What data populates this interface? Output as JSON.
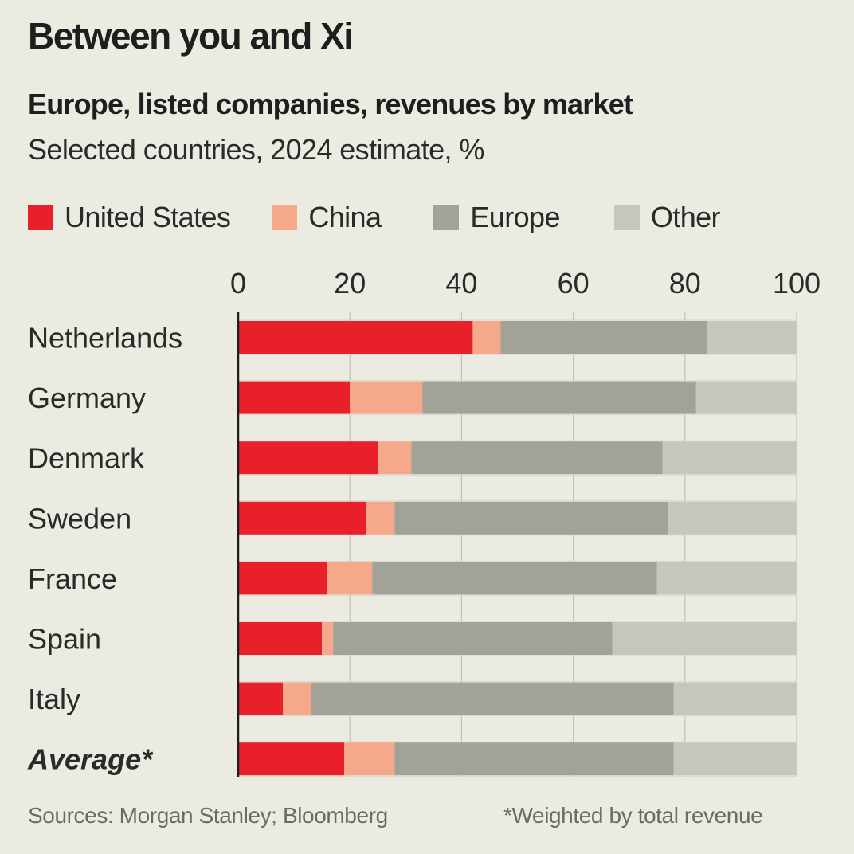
{
  "chart_data": {
    "type": "bar",
    "orientation": "horizontal",
    "stacked": true,
    "title": "Between you and Xi",
    "subtitle": "Europe, listed companies, revenues by market",
    "subsubtitle": "Selected countries, 2024 estimate, %",
    "xlabel": "",
    "ylabel": "",
    "xlim": [
      0,
      100
    ],
    "xticks": [
      "0",
      "20",
      "40",
      "60",
      "80",
      "100"
    ],
    "grid": true,
    "legend_position": "top",
    "categories": [
      "Netherlands",
      "Germany",
      "Denmark",
      "Sweden",
      "France",
      "Spain",
      "Italy",
      "Average*"
    ],
    "series": [
      {
        "name": "United States",
        "color": "#e8202a",
        "values": [
          42,
          20,
          25,
          23,
          16,
          15,
          8,
          19
        ]
      },
      {
        "name": "China",
        "color": "#f6a88a",
        "values": [
          5,
          13,
          6,
          5,
          8,
          2,
          5,
          9
        ]
      },
      {
        "name": "Europe",
        "color": "#a2a298",
        "values": [
          37,
          49,
          45,
          49,
          51,
          50,
          65,
          50
        ]
      },
      {
        "name": "Other",
        "color": "#c6c6bc",
        "values": [
          16,
          18,
          24,
          23,
          25,
          33,
          22,
          22
        ]
      }
    ],
    "emphasized_category": "Average*",
    "source": "Sources: Morgan Stanley; Bloomberg",
    "footnote": "*Weighted by total revenue"
  }
}
